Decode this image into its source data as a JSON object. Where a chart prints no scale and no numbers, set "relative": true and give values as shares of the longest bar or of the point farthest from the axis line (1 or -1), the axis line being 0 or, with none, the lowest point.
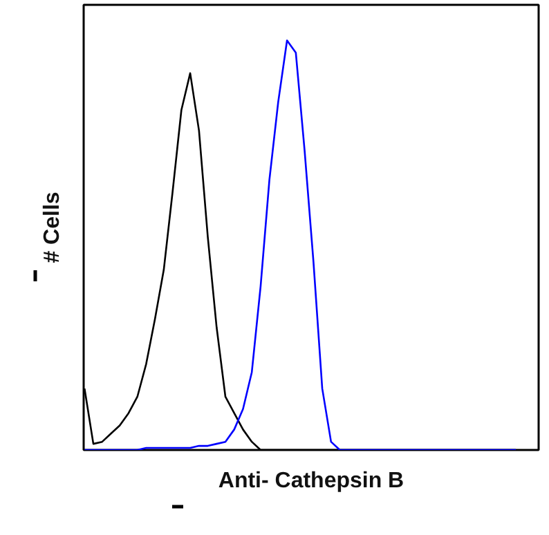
{
  "chart_data": {
    "type": "line",
    "relative": true,
    "xlabel": "Anti- Cathepsin B",
    "ylabel": "# Cells",
    "categories": [
      null,
      null,
      null,
      null,
      null,
      null,
      null,
      null,
      null,
      null,
      null,
      null,
      null,
      null,
      null,
      null,
      null,
      null,
      null,
      null,
      null,
      null,
      null,
      null,
      null,
      null,
      null,
      null,
      null,
      null,
      null,
      null,
      null,
      null,
      null,
      null,
      null,
      null,
      null,
      null,
      null,
      null,
      null,
      null,
      null,
      null,
      null,
      null,
      null,
      null
    ],
    "series": [
      {
        "color": "#000000",
        "values": [
          0.15,
          0.015,
          0.02,
          0.04,
          0.06,
          0.09,
          0.13,
          0.21,
          0.32,
          0.44,
          0.63,
          0.83,
          0.92,
          0.78,
          0.52,
          0.3,
          0.13,
          0.09,
          0.05,
          0.02,
          0,
          0,
          0,
          0,
          0,
          0,
          0,
          0,
          0,
          0,
          0,
          0,
          0,
          0,
          0,
          0,
          0,
          0,
          0,
          0,
          0,
          0,
          0,
          0,
          0,
          0,
          0,
          0,
          0,
          0
        ]
      },
      {
        "color": "#0000ff",
        "values": [
          0,
          0,
          0,
          0,
          0,
          0,
          0,
          0.005,
          0.005,
          0.005,
          0.005,
          0.005,
          0.005,
          0.01,
          0.01,
          0.015,
          0.02,
          0.05,
          0.1,
          0.19,
          0.4,
          0.66,
          0.85,
          1.0,
          0.97,
          0.73,
          0.46,
          0.15,
          0.02,
          0,
          0,
          0,
          0,
          0,
          0,
          0,
          0,
          0,
          0,
          0,
          0,
          0,
          0,
          0,
          0,
          0,
          0,
          0,
          0,
          0
        ]
      }
    ]
  }
}
